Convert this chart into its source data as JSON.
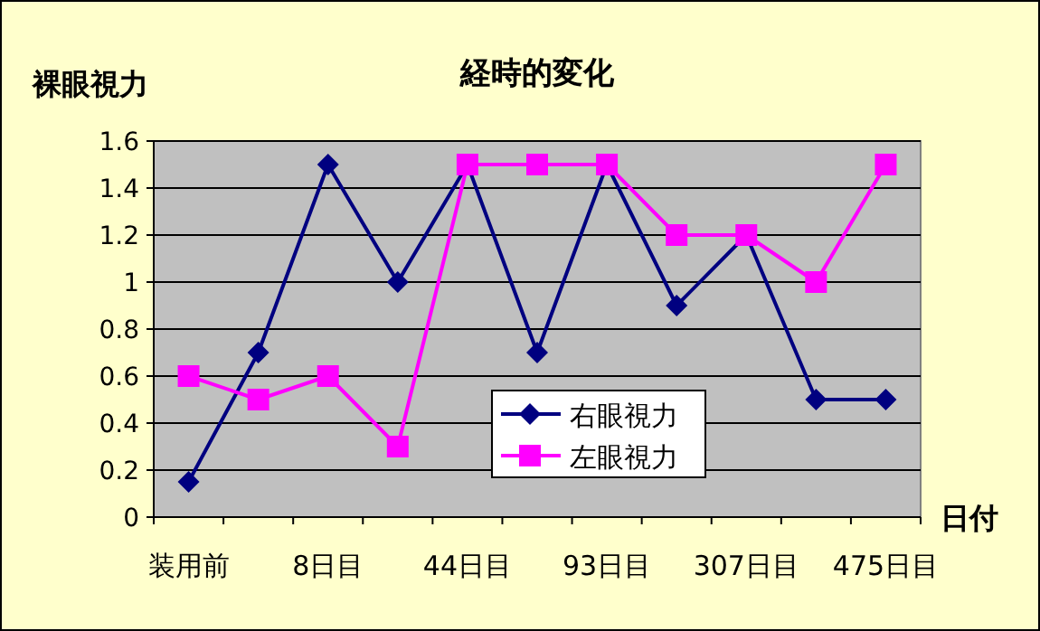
{
  "chart_data": {
    "type": "line",
    "title": "経時的変化",
    "ylabel": "裸眼視力",
    "xlabel": "日付",
    "categories": [
      "装用前",
      null,
      "8日目",
      null,
      "44日目",
      null,
      "93日目",
      null,
      "307日目",
      null,
      "475日目"
    ],
    "series": [
      {
        "name": "右眼視力",
        "color": "#000080",
        "marker": "diamond",
        "values": [
          0.15,
          0.7,
          1.5,
          1.0,
          1.5,
          0.7,
          1.5,
          0.9,
          1.2,
          0.5,
          0.5
        ]
      },
      {
        "name": "左眼視力",
        "color": "#ff00ff",
        "marker": "square",
        "values": [
          0.6,
          0.5,
          0.6,
          0.3,
          1.5,
          1.5,
          1.5,
          1.2,
          1.2,
          1.0,
          1.5
        ]
      }
    ],
    "ylim": [
      0,
      1.6
    ],
    "yticks": [
      0,
      0.2,
      0.4,
      0.6,
      0.8,
      1,
      1.2,
      1.4,
      1.6
    ],
    "grid": "y",
    "legend": "bottom"
  }
}
